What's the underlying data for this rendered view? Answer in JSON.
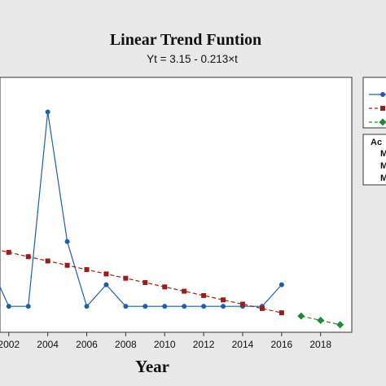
{
  "chart_data": {
    "type": "line",
    "title": "Linear Trend Funtion",
    "subtitle": "Yt = 3.15 - 0.213×t",
    "xlabel": "Year",
    "ylabel": "",
    "xlim": [
      2001.55,
      2019.6
    ],
    "ylim": [
      -0.2,
      11.6
    ],
    "x_ticks": [
      2002,
      2004,
      2006,
      2008,
      2010,
      2012,
      2014,
      2016,
      2018
    ],
    "x_tick_labels": [
      "2002",
      "2004",
      "2006",
      "2008",
      "2010",
      "2012",
      "2014",
      "2016",
      "2018"
    ],
    "grid": false,
    "legend_position": "right",
    "series": [
      {
        "style": "actual",
        "color": "#1f5fa8",
        "marker": "circle",
        "x": [
          2001,
          2002,
          2003,
          2004,
          2005,
          2006,
          2007,
          2008,
          2009,
          2010,
          2011,
          2012,
          2013,
          2014,
          2015,
          2016
        ],
        "values": [
          3,
          1,
          1,
          10,
          4,
          1,
          2,
          1,
          1,
          1,
          1,
          1,
          1,
          1,
          1,
          2
        ]
      },
      {
        "style": "fits",
        "color": "#9b1c1c",
        "marker": "square",
        "x": [
          2001,
          2002,
          2003,
          2004,
          2005,
          2006,
          2007,
          2008,
          2009,
          2010,
          2011,
          2012,
          2013,
          2014,
          2015,
          2016
        ],
        "values": [
          3.7,
          3.5,
          3.3,
          3.1,
          2.9,
          2.7,
          2.5,
          2.3,
          2.1,
          1.9,
          1.7,
          1.5,
          1.3,
          1.1,
          0.9,
          0.7
        ]
      },
      {
        "style": "forecasts",
        "color": "#1e8a3a",
        "marker": "diamond",
        "x": [
          2017,
          2018,
          2019
        ],
        "values": [
          0.55,
          0.35,
          0.15
        ]
      }
    ],
    "legend_box_text": [
      "Ac",
      "M",
      "M",
      "M"
    ]
  }
}
